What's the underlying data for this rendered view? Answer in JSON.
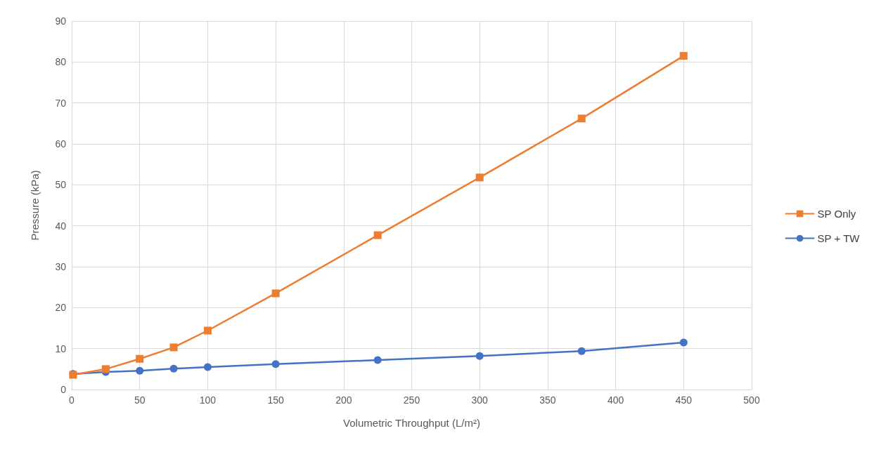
{
  "chart_data": {
    "type": "line",
    "xlabel": "Volumetric Throughput (L/m²)",
    "ylabel": "Pressure (kPa)",
    "x": [
      1,
      25,
      50,
      75,
      100,
      150,
      225,
      300,
      375,
      450
    ],
    "series": [
      {
        "name": "SP Only",
        "color": "#ed7d31",
        "marker": "square",
        "values": [
          3.6,
          5.0,
          7.5,
          10.3,
          14.4,
          23.5,
          37.7,
          51.8,
          66.2,
          81.5
        ]
      },
      {
        "name": "SP + TW",
        "color": "#4472c4",
        "marker": "circle",
        "values": [
          3.8,
          4.3,
          4.6,
          5.1,
          5.5,
          6.2,
          7.2,
          8.2,
          9.4,
          11.5
        ]
      }
    ],
    "xlim": [
      0,
      500
    ],
    "xticks": [
      0,
      50,
      100,
      150,
      200,
      250,
      300,
      350,
      400,
      450,
      500
    ],
    "ylim": [
      0,
      90
    ],
    "yticks": [
      0,
      10,
      20,
      30,
      40,
      50,
      60,
      70,
      80,
      90
    ],
    "grid": true,
    "legend": "right",
    "line_style": "solid"
  }
}
